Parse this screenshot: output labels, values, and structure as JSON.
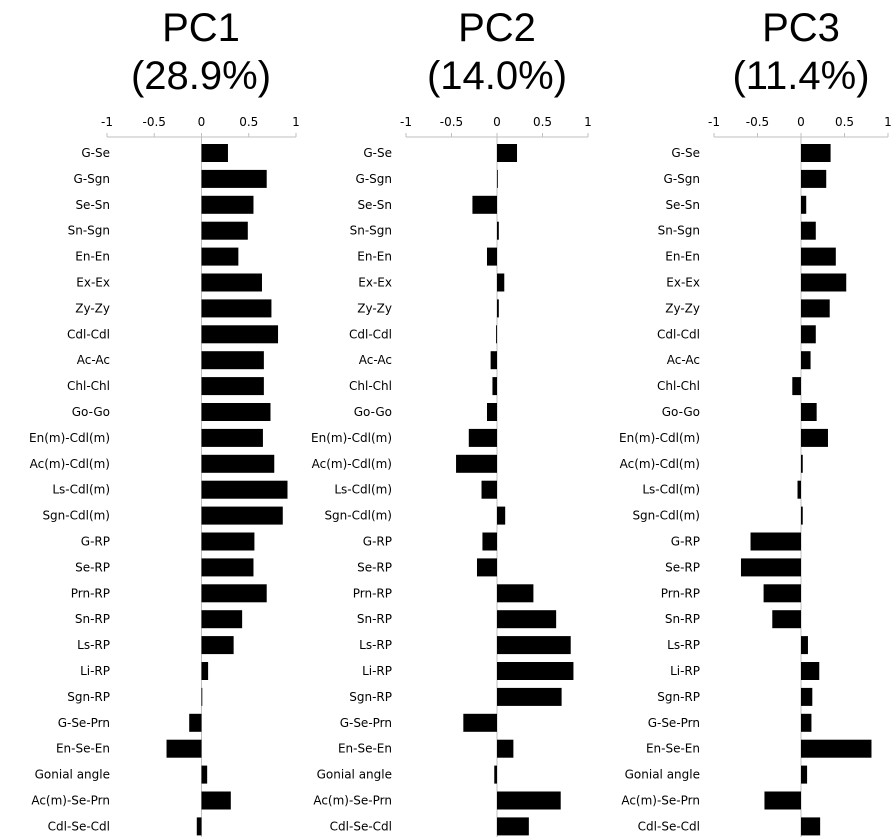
{
  "chart_data": [
    {
      "type": "bar",
      "orientation": "horizontal",
      "title": "PC1",
      "subtitle": "(28.9%)",
      "xlim": [
        -1,
        1
      ],
      "xticks": [
        "-1",
        "-0.5",
        "0",
        "0.5",
        "1"
      ],
      "categories": [
        "G-Se",
        "G-Sgn",
        "Se-Sn",
        "Sn-Sgn",
        "En-En",
        "Ex-Ex",
        "Zy-Zy",
        "Cdl-Cdl",
        "Ac-Ac",
        "Chl-Chl",
        "Go-Go",
        "En(m)-Cdl(m)",
        "Ac(m)-Cdl(m)",
        "Ls-Cdl(m)",
        "Sgn-Cdl(m)",
        "G-RP",
        "Se-RP",
        "Prn-RP",
        "Sn-RP",
        "Ls-RP",
        "Li-RP",
        "Sgn-RP",
        "G-Se-Prn",
        "En-Se-En",
        "Gonial angle",
        "Ac(m)-Se-Prn",
        "Cdl-Se-Cdl"
      ],
      "values": [
        0.28,
        0.69,
        0.55,
        0.49,
        0.39,
        0.64,
        0.74,
        0.81,
        0.66,
        0.66,
        0.73,
        0.65,
        0.77,
        0.91,
        0.86,
        0.56,
        0.55,
        0.69,
        0.43,
        0.34,
        0.07,
        0,
        -0.13,
        -0.37,
        0.06,
        0.31,
        -0.05
      ],
      "grid": false
    },
    {
      "type": "bar",
      "orientation": "horizontal",
      "title": "PC2",
      "subtitle": "(14.0%)",
      "xlim": [
        -1,
        1
      ],
      "xticks": [
        "-1",
        "-0.5",
        "0",
        "0.5",
        "1"
      ],
      "categories": [
        "G-Se",
        "G-Sgn",
        "Se-Sn",
        "Sn-Sgn",
        "En-En",
        "Ex-Ex",
        "Zy-Zy",
        "Cdl-Cdl",
        "Ac-Ac",
        "Chl-Chl",
        "Go-Go",
        "En(m)-Cdl(m)",
        "Ac(m)-Cdl(m)",
        "Ls-Cdl(m)",
        "Sgn-Cdl(m)",
        "G-RP",
        "Se-RP",
        "Prn-RP",
        "Sn-RP",
        "Ls-RP",
        "Li-RP",
        "Sgn-RP",
        "G-Se-Prn",
        "En-Se-En",
        "Gonial angle",
        "Ac(m)-Se-Prn",
        "Cdl-Se-Cdl"
      ],
      "values": [
        0.22,
        0,
        -0.27,
        0.02,
        -0.11,
        0.08,
        0.02,
        -0.01,
        -0.07,
        -0.05,
        -0.11,
        -0.31,
        -0.45,
        -0.17,
        0.09,
        -0.16,
        -0.22,
        0.4,
        0.65,
        0.81,
        0.84,
        0.71,
        -0.37,
        0.18,
        -0.03,
        0.7,
        0.35
      ],
      "grid": false
    },
    {
      "type": "bar",
      "orientation": "horizontal",
      "title": "PC3",
      "subtitle": "(11.4%)",
      "xlim": [
        -1,
        1
      ],
      "xticks": [
        "-1",
        "-0.5",
        "0",
        "0.5",
        "1"
      ],
      "categories": [
        "G-Se",
        "G-Sgn",
        "Se-Sn",
        "Sn-Sgn",
        "En-En",
        "Ex-Ex",
        "Zy-Zy",
        "Cdl-Cdl",
        "Ac-Ac",
        "Chl-Chl",
        "Go-Go",
        "En(m)-Cdl(m)",
        "Ac(m)-Cdl(m)",
        "Ls-Cdl(m)",
        "Sgn-Cdl(m)",
        "G-RP",
        "Se-RP",
        "Prn-RP",
        "Sn-RP",
        "Ls-RP",
        "Li-RP",
        "Sgn-RP",
        "G-Se-Prn",
        "En-Se-En",
        "Gonial angle",
        "Ac(m)-Se-Prn",
        "Cdl-Se-Cdl"
      ],
      "values": [
        0.34,
        0.29,
        0.06,
        0.17,
        0.4,
        0.52,
        0.33,
        0.17,
        0.11,
        -0.1,
        0.18,
        0.31,
        0.02,
        -0.04,
        0.02,
        -0.58,
        -0.69,
        -0.43,
        -0.33,
        0.08,
        0.21,
        0.13,
        0.12,
        0.81,
        0.07,
        -0.42,
        0.22
      ],
      "grid": false
    }
  ]
}
